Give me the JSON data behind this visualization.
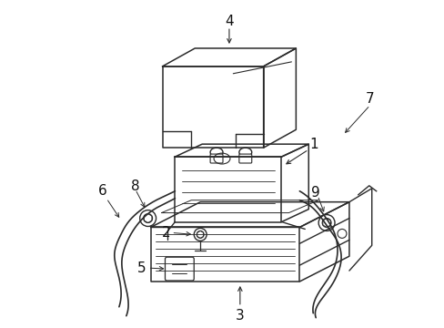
{
  "background_color": "#ffffff",
  "line_color": "#2a2a2a",
  "label_color": "#111111",
  "figsize": [
    4.89,
    3.6
  ],
  "dpi": 100
}
